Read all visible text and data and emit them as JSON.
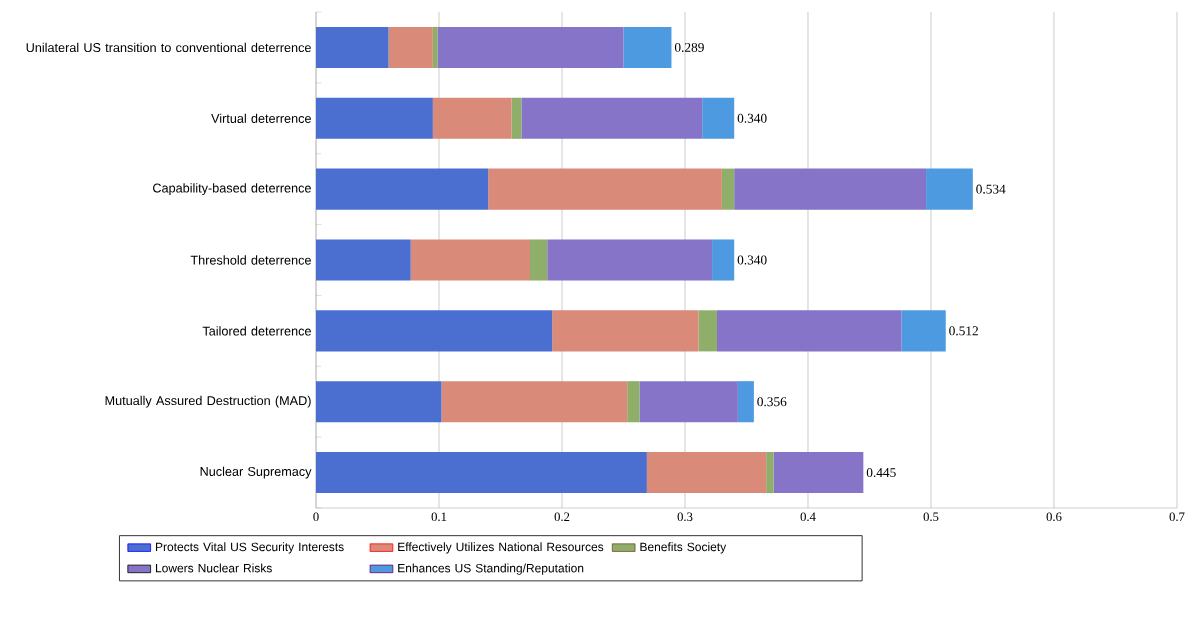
{
  "chart_data": {
    "type": "bar",
    "orientation": "horizontal",
    "stacked": true,
    "categories": [
      "Unilateral US transition to conventional deterrence",
      "Virtual deterrence",
      "Capability-based deterrence",
      "Threshold deterrence",
      "Tailored deterrence",
      "Mutually Assured Destruction (MAD)",
      "Nuclear Supremacy"
    ],
    "series": [
      {
        "name": "Protects Vital US Security Interests",
        "color": "#4a6fd0",
        "values": [
          0.059,
          0.095,
          0.14,
          0.077,
          0.192,
          0.102,
          0.269
        ]
      },
      {
        "name": "Effectively Utilizes National Resources",
        "color": "#d98a78",
        "values": [
          0.036,
          0.064,
          0.19,
          0.097,
          0.119,
          0.151,
          0.097
        ]
      },
      {
        "name": "Benefits Society",
        "color": "#8fae6a",
        "values": [
          0.004,
          0.008,
          0.01,
          0.014,
          0.015,
          0.01,
          0.006
        ]
      },
      {
        "name": "Lowers Nuclear Risks",
        "color": "#8674c8",
        "values": [
          0.151,
          0.147,
          0.156,
          0.134,
          0.15,
          0.08,
          0.073
        ]
      },
      {
        "name": "Enhances US Standing/Reputation",
        "color": "#4d9ae0",
        "values": [
          0.039,
          0.026,
          0.038,
          0.018,
          0.036,
          0.013,
          0
        ]
      }
    ],
    "totals": [
      "0.289",
      "0.340",
      "0.534",
      "0.340",
      "0.512",
      "0.356",
      "0.445"
    ],
    "xlim": [
      0,
      0.7
    ],
    "xticks": [
      0,
      0.1,
      0.2,
      0.3,
      0.4,
      0.5,
      0.6,
      0.7
    ],
    "grid": "x",
    "legend": "bottom"
  }
}
